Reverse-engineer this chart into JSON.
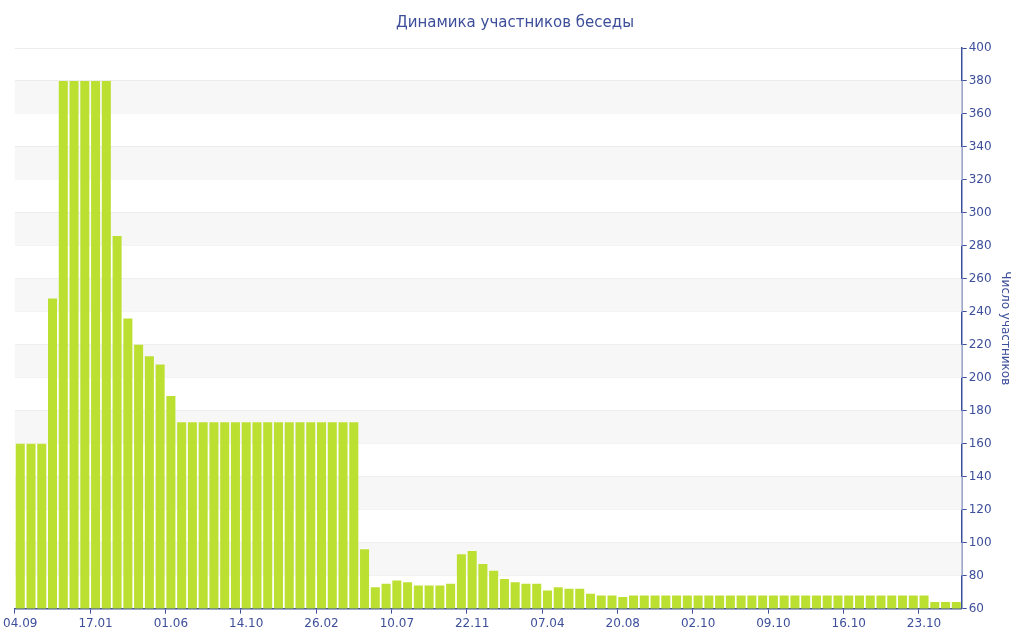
{
  "chart_data": {
    "type": "bar",
    "title": "Динамика участников беседы",
    "ylabel": "Число участников",
    "categories": [
      "04.09",
      null,
      null,
      null,
      null,
      null,
      null,
      "17.01",
      null,
      null,
      null,
      null,
      null,
      null,
      "01.06",
      null,
      null,
      null,
      null,
      null,
      null,
      "14.10",
      null,
      null,
      null,
      null,
      null,
      null,
      "26.02",
      null,
      null,
      null,
      null,
      null,
      null,
      "10.07",
      null,
      null,
      null,
      null,
      null,
      null,
      "22.11",
      null,
      null,
      null,
      null,
      null,
      null,
      "07.04",
      null,
      null,
      null,
      null,
      null,
      null,
      "20.08",
      null,
      null,
      null,
      null,
      null,
      null,
      "02.10",
      null,
      null,
      null,
      null,
      null,
      null,
      "09.10",
      null,
      null,
      null,
      null,
      null,
      null,
      "16.10",
      null,
      null,
      null,
      null,
      null,
      null,
      "23.10",
      null,
      null,
      null
    ],
    "values": [
      160,
      160,
      160,
      248,
      380,
      380,
      380,
      380,
      380,
      286,
      236,
      220,
      213,
      208,
      189,
      173,
      173,
      173,
      173,
      173,
      173,
      173,
      173,
      173,
      173,
      173,
      173,
      173,
      173,
      173,
      173,
      173,
      96,
      73,
      75,
      77,
      76,
      74,
      74,
      74,
      75,
      93,
      95,
      87,
      83,
      78,
      76,
      75,
      75,
      71,
      73,
      72,
      72,
      69,
      68,
      68,
      67,
      68,
      68,
      68,
      68,
      68,
      68,
      68,
      68,
      68,
      68,
      68,
      68,
      68,
      68,
      68,
      68,
      68,
      68,
      68,
      68,
      68,
      68,
      68,
      68,
      68,
      68,
      68,
      68,
      64,
      64,
      64
    ],
    "color": "#bce032",
    "ylim": [
      60,
      400
    ],
    "yticks": [
      60,
      80,
      100,
      120,
      140,
      160,
      180,
      200,
      220,
      240,
      260,
      280,
      300,
      320,
      340,
      360,
      380,
      400
    ],
    "grid": "y",
    "legend": false
  }
}
